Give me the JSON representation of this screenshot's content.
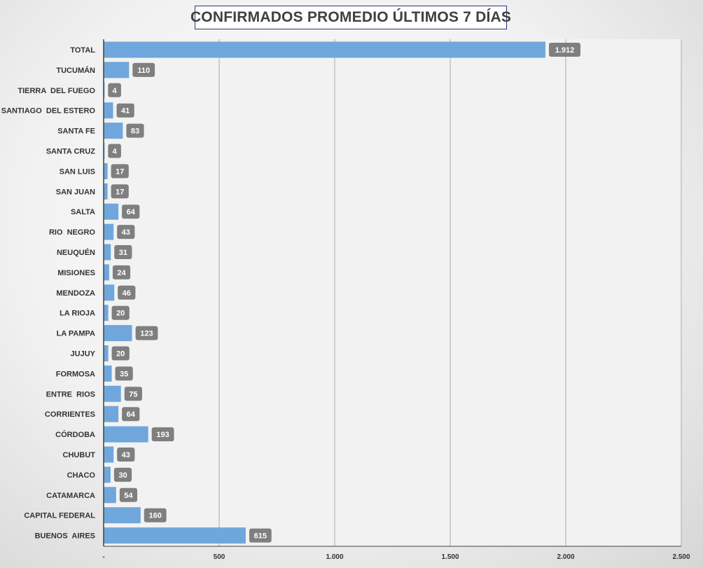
{
  "chart_data": {
    "type": "bar",
    "orientation": "horizontal",
    "title": "CONFIRMADOS PROMEDIO ÚLTIMOS 7 DÍAS",
    "categories": [
      "TOTAL",
      "TUCUMÁN",
      "TIERRA  DEL FUEGO",
      "SANTIAGO  DEL ESTERO",
      "SANTA FE",
      "SANTA CRUZ",
      "SAN LUIS",
      "SAN JUAN",
      "SALTA",
      "RIO  NEGRO",
      "NEUQUÉN",
      "MISIONES",
      "MENDOZA",
      "LA RIOJA",
      "LA PAMPA",
      "JUJUY",
      "FORMOSA",
      "ENTRE  RIOS",
      "CORRIENTES",
      "CÓRDOBA",
      "CHUBUT",
      "CHACO",
      "CATAMARCA",
      "CAPITAL FEDERAL",
      "BUENOS  AIRES"
    ],
    "values": [
      1912,
      110,
      4,
      41,
      83,
      4,
      17,
      17,
      64,
      43,
      31,
      24,
      46,
      20,
      123,
      20,
      35,
      75,
      64,
      193,
      43,
      30,
      54,
      160,
      615
    ],
    "value_labels": [
      "1.912",
      "110",
      "4",
      "41",
      "83",
      "4",
      "17",
      "17",
      "64",
      "43",
      "31",
      "24",
      "46",
      "20",
      "123",
      "20",
      "35",
      "75",
      "64",
      "193",
      "43",
      "30",
      "54",
      "160",
      "615"
    ],
    "xlim": [
      0,
      2500
    ],
    "x_ticks": [
      0,
      500,
      1000,
      1500,
      2000,
      2500
    ],
    "x_tick_labels": [
      "-",
      "500",
      "1.000",
      "1.500",
      "2.000",
      "2.500"
    ],
    "grid": "vertical",
    "legend": "none",
    "colors": {
      "bar": "#6fa7dc",
      "label_bg": "#7f7f7f",
      "label_text": "#ffffff",
      "plot_bg": "#f2f2f2",
      "grid": "#aaaaaa",
      "axis": "#404040",
      "title_border": "#1f3a73"
    }
  }
}
